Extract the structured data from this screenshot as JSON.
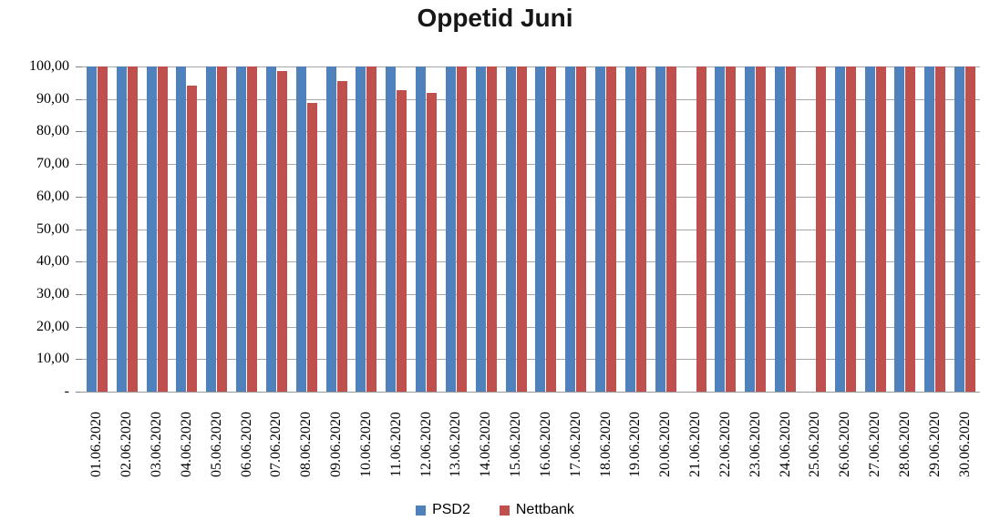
{
  "chart_data": {
    "type": "bar",
    "title": "Oppetid Juni",
    "categories": [
      "01.06.2020",
      "02.06.2020",
      "03.06.2020",
      "04.06.2020",
      "05.06.2020",
      "06.06.2020",
      "07.06.2020",
      "08.06.2020",
      "09.06.2020",
      "10.06.2020",
      "11.06.2020",
      "12.06.2020",
      "13.06.2020",
      "14.06.2020",
      "15.06.2020",
      "16.06.2020",
      "17.06.2020",
      "18.06.2020",
      "19.06.2020",
      "20.06.2020",
      "21.06.2020",
      "22.06.2020",
      "23.06.2020",
      "24.06.2020",
      "25.06.2020",
      "26.06.2020",
      "27.06.2020",
      "28.06.2020",
      "29.06.2020",
      "30.06.2020"
    ],
    "series": [
      {
        "name": "PSD2",
        "color": "#4F81BD",
        "values": [
          100,
          100,
          100,
          100,
          100,
          100,
          100,
          100,
          100,
          100,
          100,
          100,
          100,
          100,
          100,
          100,
          100,
          100,
          100,
          100,
          null,
          100,
          100,
          100,
          null,
          100,
          100,
          100,
          100,
          100
        ]
      },
      {
        "name": "Nettbank",
        "color": "#C0504D",
        "values": [
          100,
          100,
          100,
          94.0,
          100,
          100,
          98.6,
          88.7,
          95.6,
          100,
          92.8,
          92.0,
          100,
          100,
          100,
          100,
          100,
          100,
          100,
          100,
          100,
          100,
          100,
          100,
          100,
          100,
          100,
          100,
          100,
          100
        ]
      }
    ],
    "ylim": [
      0,
      100
    ],
    "ytick_step": 10,
    "ytick_labels": [
      "-",
      "10,00",
      "20,00",
      "30,00",
      "40,00",
      "50,00",
      "60,00",
      "70,00",
      "80,00",
      "90,00",
      "100,00"
    ],
    "legend_position": "bottom",
    "grid": true,
    "gridline_color": "#A6A6A6",
    "axis_text_color": "#000000",
    "title_color": "#171717"
  }
}
